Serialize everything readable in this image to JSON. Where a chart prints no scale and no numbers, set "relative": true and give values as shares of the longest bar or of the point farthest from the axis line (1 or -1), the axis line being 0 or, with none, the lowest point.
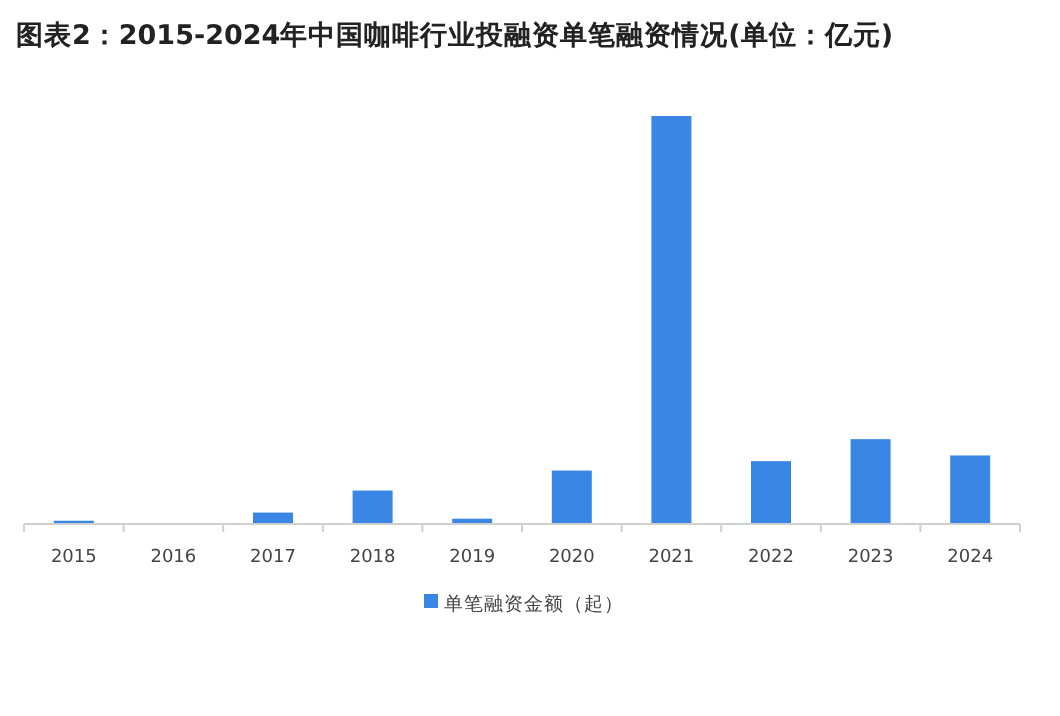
{
  "chart_data": {
    "type": "bar",
    "title": "图表2：2015-2024年中国咖啡行业投融资单笔融资情况(单位：亿元)",
    "relative": true,
    "legend": "bottom",
    "categories": [
      "2015",
      "2016",
      "2017",
      "2018",
      "2019",
      "2020",
      "2021",
      "2022",
      "2023",
      "2024"
    ],
    "series": [
      {
        "name": "单笔融资金额（起）",
        "color": "#3a86e4",
        "values": [
          0.008,
          0,
          0.028,
          0.082,
          0.013,
          0.131,
          1,
          0.154,
          0.208,
          0.168
        ]
      }
    ]
  }
}
